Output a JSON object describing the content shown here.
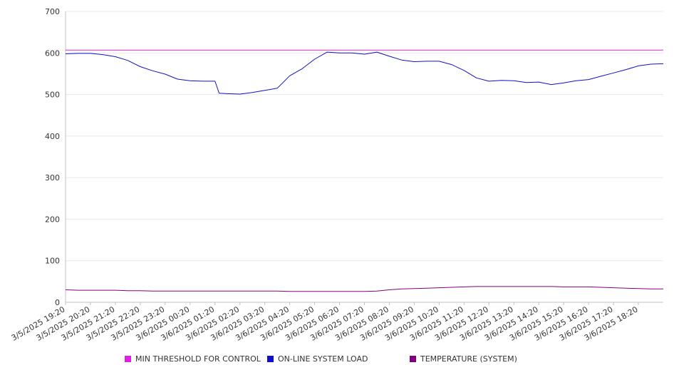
{
  "chart_data": {
    "type": "line",
    "title": "",
    "xlabel": "",
    "ylabel": "",
    "ylim": [
      0,
      700
    ],
    "yticks": [
      0,
      100,
      200,
      300,
      400,
      500,
      600,
      700
    ],
    "grid": true,
    "legend_position": "bottom",
    "x_tick_labels": [
      "3/5/2025 19:20",
      "3/5/2025 20:20",
      "3/5/2025 21:20",
      "3/5/2025 22:20",
      "3/5/2025 23:20",
      "3/6/2025 00:20",
      "3/6/2025 01:20",
      "3/6/2025 02:20",
      "3/6/2025 03:20",
      "3/6/2025 04:20",
      "3/6/2025 05:20",
      "3/6/2025 06:20",
      "3/6/2025 07:20",
      "3/6/2025 08:20",
      "3/6/2025 09:20",
      "3/6/2025 10:20",
      "3/6/2025 11:20",
      "3/6/2025 12:20",
      "3/6/2025 13:20",
      "3/6/2025 14:20",
      "3/6/2025 15:20",
      "3/6/2025 16:20",
      "3/6/2025 17:20",
      "3/6/2025 18:20"
    ],
    "x": [
      "3/5/2025 19:20",
      "3/5/2025 19:50",
      "3/5/2025 20:20",
      "3/5/2025 20:50",
      "3/5/2025 21:20",
      "3/5/2025 21:50",
      "3/5/2025 22:20",
      "3/5/2025 22:50",
      "3/5/2025 23:20",
      "3/5/2025 23:50",
      "3/6/2025 00:20",
      "3/6/2025 00:50",
      "3/6/2025 01:20",
      "3/6/2025 01:30",
      "3/6/2025 01:50",
      "3/6/2025 02:20",
      "3/6/2025 02:50",
      "3/6/2025 03:20",
      "3/6/2025 03:50",
      "3/6/2025 04:20",
      "3/6/2025 04:50",
      "3/6/2025 05:20",
      "3/6/2025 05:50",
      "3/6/2025 06:20",
      "3/6/2025 06:50",
      "3/6/2025 07:20",
      "3/6/2025 07:50",
      "3/6/2025 08:20",
      "3/6/2025 08:50",
      "3/6/2025 09:20",
      "3/6/2025 09:50",
      "3/6/2025 10:20",
      "3/6/2025 10:50",
      "3/6/2025 11:20",
      "3/6/2025 11:50",
      "3/6/2025 12:20",
      "3/6/2025 12:50",
      "3/6/2025 13:20",
      "3/6/2025 13:50",
      "3/6/2025 14:20",
      "3/6/2025 14:50",
      "3/6/2025 15:20",
      "3/6/2025 15:50",
      "3/6/2025 16:20",
      "3/6/2025 16:50",
      "3/6/2025 17:20",
      "3/6/2025 17:50",
      "3/6/2025 18:20",
      "3/6/2025 18:50",
      "3/6/2025 19:20"
    ],
    "series": [
      {
        "name": "MIN THRESHOLD FOR CONTROL",
        "color": "#e020e0",
        "values": [
          607,
          607,
          607,
          607,
          607,
          607,
          607,
          607,
          607,
          607,
          607,
          607,
          607,
          607,
          607,
          607,
          607,
          607,
          607,
          607,
          607,
          607,
          607,
          607,
          607,
          607,
          607,
          607,
          607,
          607,
          607,
          607,
          607,
          607,
          607,
          607,
          607,
          607,
          607,
          607,
          607,
          607,
          607,
          607,
          607,
          607,
          607,
          607,
          607,
          607
        ]
      },
      {
        "name": "ON-LINE SYSTEM LOAD",
        "color": "#1010c8",
        "values": [
          598,
          599,
          599,
          596,
          591,
          582,
          567,
          557,
          549,
          537,
          533,
          532,
          532,
          503,
          502,
          501,
          505,
          510,
          515,
          545,
          562,
          585,
          602,
          600,
          600,
          597,
          602,
          592,
          583,
          579,
          580,
          580,
          572,
          558,
          540,
          532,
          534,
          533,
          529,
          530,
          524,
          528,
          533,
          536,
          544,
          552,
          560,
          569,
          573,
          574
        ]
      },
      {
        "name": "TEMPERATURE (SYSTEM)",
        "color": "#800080",
        "values": [
          30,
          29,
          29,
          29,
          29,
          28,
          28,
          27,
          27,
          27,
          27,
          27,
          27,
          27,
          27,
          27,
          27,
          27,
          27,
          26,
          26,
          26,
          26,
          26,
          26,
          26,
          27,
          30,
          32,
          33,
          34,
          35,
          36,
          37,
          38,
          38,
          38,
          38,
          38,
          38,
          38,
          37,
          37,
          37,
          36,
          35,
          34,
          33,
          32,
          32
        ]
      }
    ]
  }
}
